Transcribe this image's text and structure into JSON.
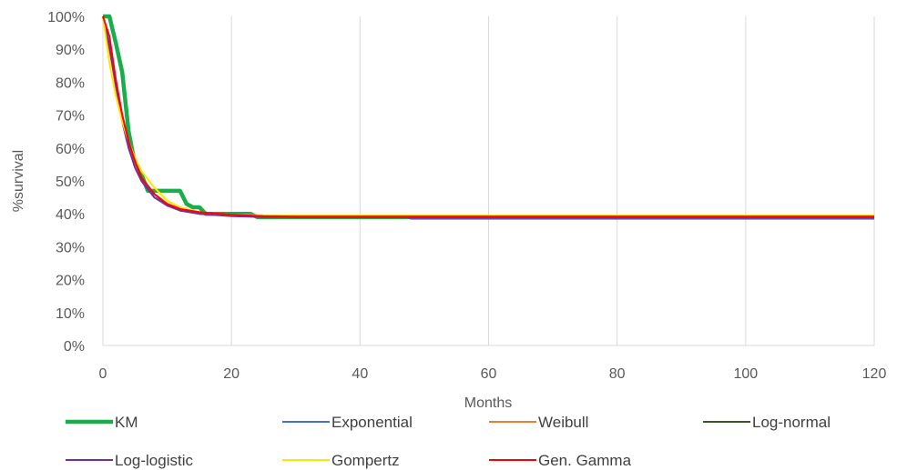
{
  "chart_data": {
    "type": "line",
    "title": "",
    "xlabel": "Months",
    "ylabel": "%survival",
    "xlim": [
      0,
      120
    ],
    "ylim": [
      0,
      100
    ],
    "x_ticks": [
      "0",
      "20",
      "40",
      "60",
      "80",
      "100",
      "120"
    ],
    "y_ticks": [
      "0%",
      "10%",
      "20%",
      "30%",
      "40%",
      "50%",
      "60%",
      "70%",
      "80%",
      "90%",
      "100%"
    ],
    "grid": "vertical",
    "legend_position": "bottom",
    "series": [
      {
        "name": "KM",
        "color": "#1aad4b",
        "x": [
          0,
          1,
          2,
          3,
          4,
          5,
          6,
          7,
          8,
          9,
          10,
          11,
          12,
          13,
          14,
          15,
          16,
          17,
          18,
          19,
          20,
          21,
          22,
          23,
          24,
          25,
          30,
          40,
          50,
          60,
          80,
          100,
          120
        ],
        "y": [
          100,
          100,
          92,
          83,
          65,
          55,
          52,
          47,
          47,
          47,
          47,
          47,
          47,
          43,
          42,
          42,
          40,
          40,
          40,
          40,
          40,
          40,
          40,
          40,
          39,
          39,
          39,
          39,
          39,
          39,
          39,
          39,
          39
        ]
      },
      {
        "name": "Exponential",
        "color": "#4472c4",
        "x": [
          0,
          1,
          2,
          3,
          4,
          5,
          6,
          8,
          10,
          12,
          15,
          20,
          25,
          30,
          40,
          47,
          48,
          60,
          80,
          100,
          120
        ],
        "y": [
          100,
          91,
          80,
          69,
          61,
          55,
          50,
          45,
          43,
          41,
          40,
          39.5,
          39,
          39,
          39,
          39,
          38.5,
          38.5,
          38.5,
          38.5,
          38.5
        ]
      },
      {
        "name": "Weibull",
        "color": "#ed7d31",
        "x": [
          0,
          1,
          2,
          3,
          4,
          5,
          6,
          8,
          10,
          12,
          15,
          20,
          25,
          30,
          40,
          60,
          80,
          100,
          120
        ],
        "y": [
          100,
          90,
          79,
          69,
          61,
          55,
          51,
          46,
          43,
          41.5,
          40.5,
          39.7,
          39.5,
          39.5,
          39.5,
          39.5,
          39.5,
          39.5,
          39.5
        ]
      },
      {
        "name": "Log-normal",
        "color": "#375623",
        "x": [
          0,
          1,
          2,
          3,
          4,
          5,
          6,
          8,
          10,
          12,
          15,
          20,
          25,
          30,
          40,
          60,
          80,
          100,
          120
        ],
        "y": [
          100,
          91,
          80,
          70,
          62,
          56,
          51,
          46,
          43,
          41.5,
          40.5,
          39.7,
          39.3,
          39,
          39,
          39,
          39,
          39,
          39
        ]
      },
      {
        "name": "Log-logistic",
        "color": "#7030a0",
        "x": [
          0,
          1,
          2,
          3,
          4,
          5,
          6,
          8,
          10,
          12,
          15,
          20,
          25,
          30,
          40,
          47,
          48,
          60,
          80,
          100,
          120
        ],
        "y": [
          100,
          91,
          79,
          68,
          60,
          54,
          50,
          45,
          42.5,
          41,
          40,
          39.3,
          39,
          39,
          39,
          39,
          38.8,
          38.8,
          38.8,
          38.8,
          38.8
        ]
      },
      {
        "name": "Gompertz",
        "color": "#ffe600",
        "x": [
          0,
          1,
          2,
          3,
          4,
          5,
          6,
          8,
          10,
          12,
          15,
          20,
          25,
          30,
          40,
          60,
          80,
          100,
          120
        ],
        "y": [
          100,
          86,
          76,
          68,
          62,
          57,
          53,
          48,
          44,
          42,
          40.5,
          39.7,
          39.5,
          39.5,
          39.5,
          39.5,
          39.5,
          39.5,
          39.5
        ]
      },
      {
        "name": "Gen. Gamma",
        "color": "#ff0000",
        "x": [
          0,
          1,
          2,
          3,
          4,
          5,
          6,
          8,
          10,
          12,
          15,
          20,
          25,
          30,
          40,
          60,
          80,
          100,
          120
        ],
        "y": [
          100,
          94,
          81,
          70,
          62,
          56,
          51,
          46,
          43,
          41.5,
          40.5,
          39.7,
          39.3,
          39.2,
          39.2,
          39.2,
          39.2,
          39.2,
          39.2
        ]
      }
    ]
  }
}
